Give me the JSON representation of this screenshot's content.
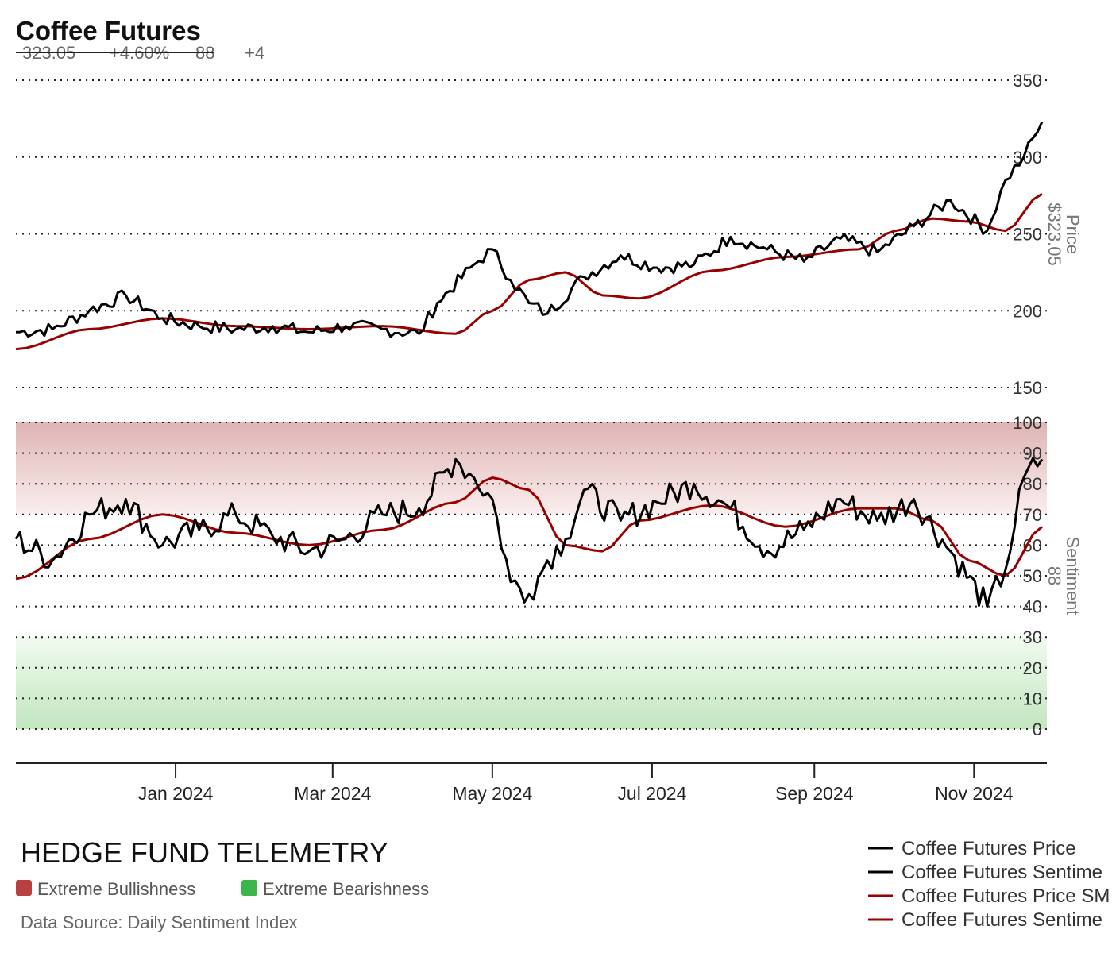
{
  "header": {
    "title": "Coffee Futures",
    "price": "323.05",
    "change": "+4.60%",
    "sentiment": "88",
    "sentiment_change": "+4"
  },
  "price_axis": {
    "label": "Price",
    "value_label": "$323.05"
  },
  "sentiment_axis": {
    "label": "Sentiment",
    "value_label": "88"
  },
  "zones": {
    "bull_label": "Extreme Bullishness",
    "bull_color": "#b94040",
    "bear_label": "Extreme Bearishness",
    "bear_color": "#3cb44b"
  },
  "footer": {
    "brand": "HEDGE FUND TELEMETRY",
    "source": "Data Source: Daily Sentiment Index"
  },
  "legend": [
    {
      "label": "Coffee Futures Price",
      "color": "#000000"
    },
    {
      "label": "Coffee Futures Sentime",
      "color": "#000000"
    },
    {
      "label": "Coffee Futures Price SM",
      "color": "#990000"
    },
    {
      "label": "Coffee Futures Sentime",
      "color": "#990000"
    }
  ],
  "chart_data": [
    {
      "type": "line",
      "panel": "price",
      "x_start": "2023-11-01",
      "x_end": "2024-11-27",
      "x_ticks": [
        "Jan 2024",
        "Mar 2024",
        "May 2024",
        "Jul 2024",
        "Sep 2024",
        "Nov 2024"
      ],
      "ylim": [
        150,
        350
      ],
      "y_ticks": [
        "350",
        "300",
        "250",
        "200",
        "150"
      ],
      "grid": true,
      "series": [
        {
          "name": "Coffee Futures Price",
          "color": "#000000",
          "x": [
            "2023-11-01",
            "2023-11-15",
            "2023-11-29",
            "2023-12-13",
            "2023-12-27",
            "2024-01-10",
            "2024-01-24",
            "2024-02-07",
            "2024-02-21",
            "2024-03-06",
            "2024-03-20",
            "2024-04-03",
            "2024-04-10",
            "2024-04-24",
            "2024-05-01",
            "2024-05-08",
            "2024-05-15",
            "2024-05-22",
            "2024-06-05",
            "2024-06-19",
            "2024-07-03",
            "2024-07-17",
            "2024-07-31",
            "2024-08-14",
            "2024-08-28",
            "2024-09-11",
            "2024-09-25",
            "2024-10-09",
            "2024-10-23",
            "2024-11-06",
            "2024-11-13",
            "2024-11-20",
            "2024-11-27"
          ],
          "y": [
            186,
            188,
            200,
            210,
            195,
            190,
            188,
            190,
            186,
            190,
            188,
            185,
            205,
            230,
            240,
            220,
            205,
            198,
            222,
            236,
            228,
            230,
            248,
            240,
            232,
            247,
            238,
            255,
            272,
            252,
            285,
            300,
            323
          ]
        },
        {
          "name": "Coffee Futures Price SMA",
          "color": "#990000",
          "x": [
            "2023-11-01",
            "2023-11-29",
            "2023-12-27",
            "2024-01-24",
            "2024-02-21",
            "2024-03-20",
            "2024-04-17",
            "2024-05-01",
            "2024-05-15",
            "2024-05-29",
            "2024-06-12",
            "2024-06-26",
            "2024-07-24",
            "2024-08-21",
            "2024-09-18",
            "2024-10-02",
            "2024-10-16",
            "2024-10-30",
            "2024-11-13",
            "2024-11-27"
          ],
          "y": [
            175,
            188,
            195,
            190,
            188,
            190,
            185,
            200,
            220,
            225,
            210,
            208,
            226,
            235,
            240,
            252,
            260,
            258,
            252,
            276
          ]
        }
      ]
    },
    {
      "type": "line",
      "panel": "sentiment",
      "ylim": [
        0,
        100
      ],
      "y_ticks": [
        "100",
        "90",
        "80",
        "70",
        "60",
        "50",
        "40",
        "30",
        "20",
        "10",
        "0"
      ],
      "zones": {
        "extreme_bullish": [
          70,
          100
        ],
        "extreme_bearish": [
          0,
          30
        ]
      },
      "series": [
        {
          "name": "Coffee Futures Sentiment",
          "color": "#000000",
          "x": [
            "2023-11-01",
            "2023-11-15",
            "2023-11-29",
            "2023-12-13",
            "2023-12-27",
            "2024-01-10",
            "2024-01-24",
            "2024-02-07",
            "2024-02-21",
            "2024-03-06",
            "2024-03-20",
            "2024-04-03",
            "2024-04-17",
            "2024-04-24",
            "2024-05-01",
            "2024-05-08",
            "2024-05-15",
            "2024-05-22",
            "2024-05-29",
            "2024-06-05",
            "2024-06-19",
            "2024-07-03",
            "2024-07-17",
            "2024-07-31",
            "2024-08-14",
            "2024-08-28",
            "2024-09-11",
            "2024-09-25",
            "2024-10-09",
            "2024-10-23",
            "2024-11-06",
            "2024-11-13",
            "2024-11-20",
            "2024-11-27"
          ],
          "y": [
            62,
            55,
            70,
            75,
            60,
            65,
            70,
            63,
            58,
            62,
            70,
            72,
            88,
            82,
            75,
            48,
            44,
            55,
            62,
            78,
            68,
            74,
            80,
            72,
            58,
            65,
            75,
            68,
            75,
            58,
            40,
            52,
            82,
            88
          ]
        },
        {
          "name": "Coffee Futures Sentiment SMA",
          "color": "#990000",
          "x": [
            "2023-11-01",
            "2023-11-29",
            "2023-12-27",
            "2024-01-24",
            "2024-02-21",
            "2024-03-20",
            "2024-04-17",
            "2024-05-01",
            "2024-05-15",
            "2024-05-29",
            "2024-06-12",
            "2024-06-26",
            "2024-07-24",
            "2024-08-21",
            "2024-09-18",
            "2024-10-02",
            "2024-10-16",
            "2024-10-30",
            "2024-11-13",
            "2024-11-27"
          ],
          "y": [
            49,
            62,
            70,
            64,
            60,
            65,
            74,
            82,
            78,
            60,
            58,
            68,
            73,
            66,
            72,
            72,
            68,
            55,
            50,
            66
          ]
        }
      ]
    }
  ]
}
